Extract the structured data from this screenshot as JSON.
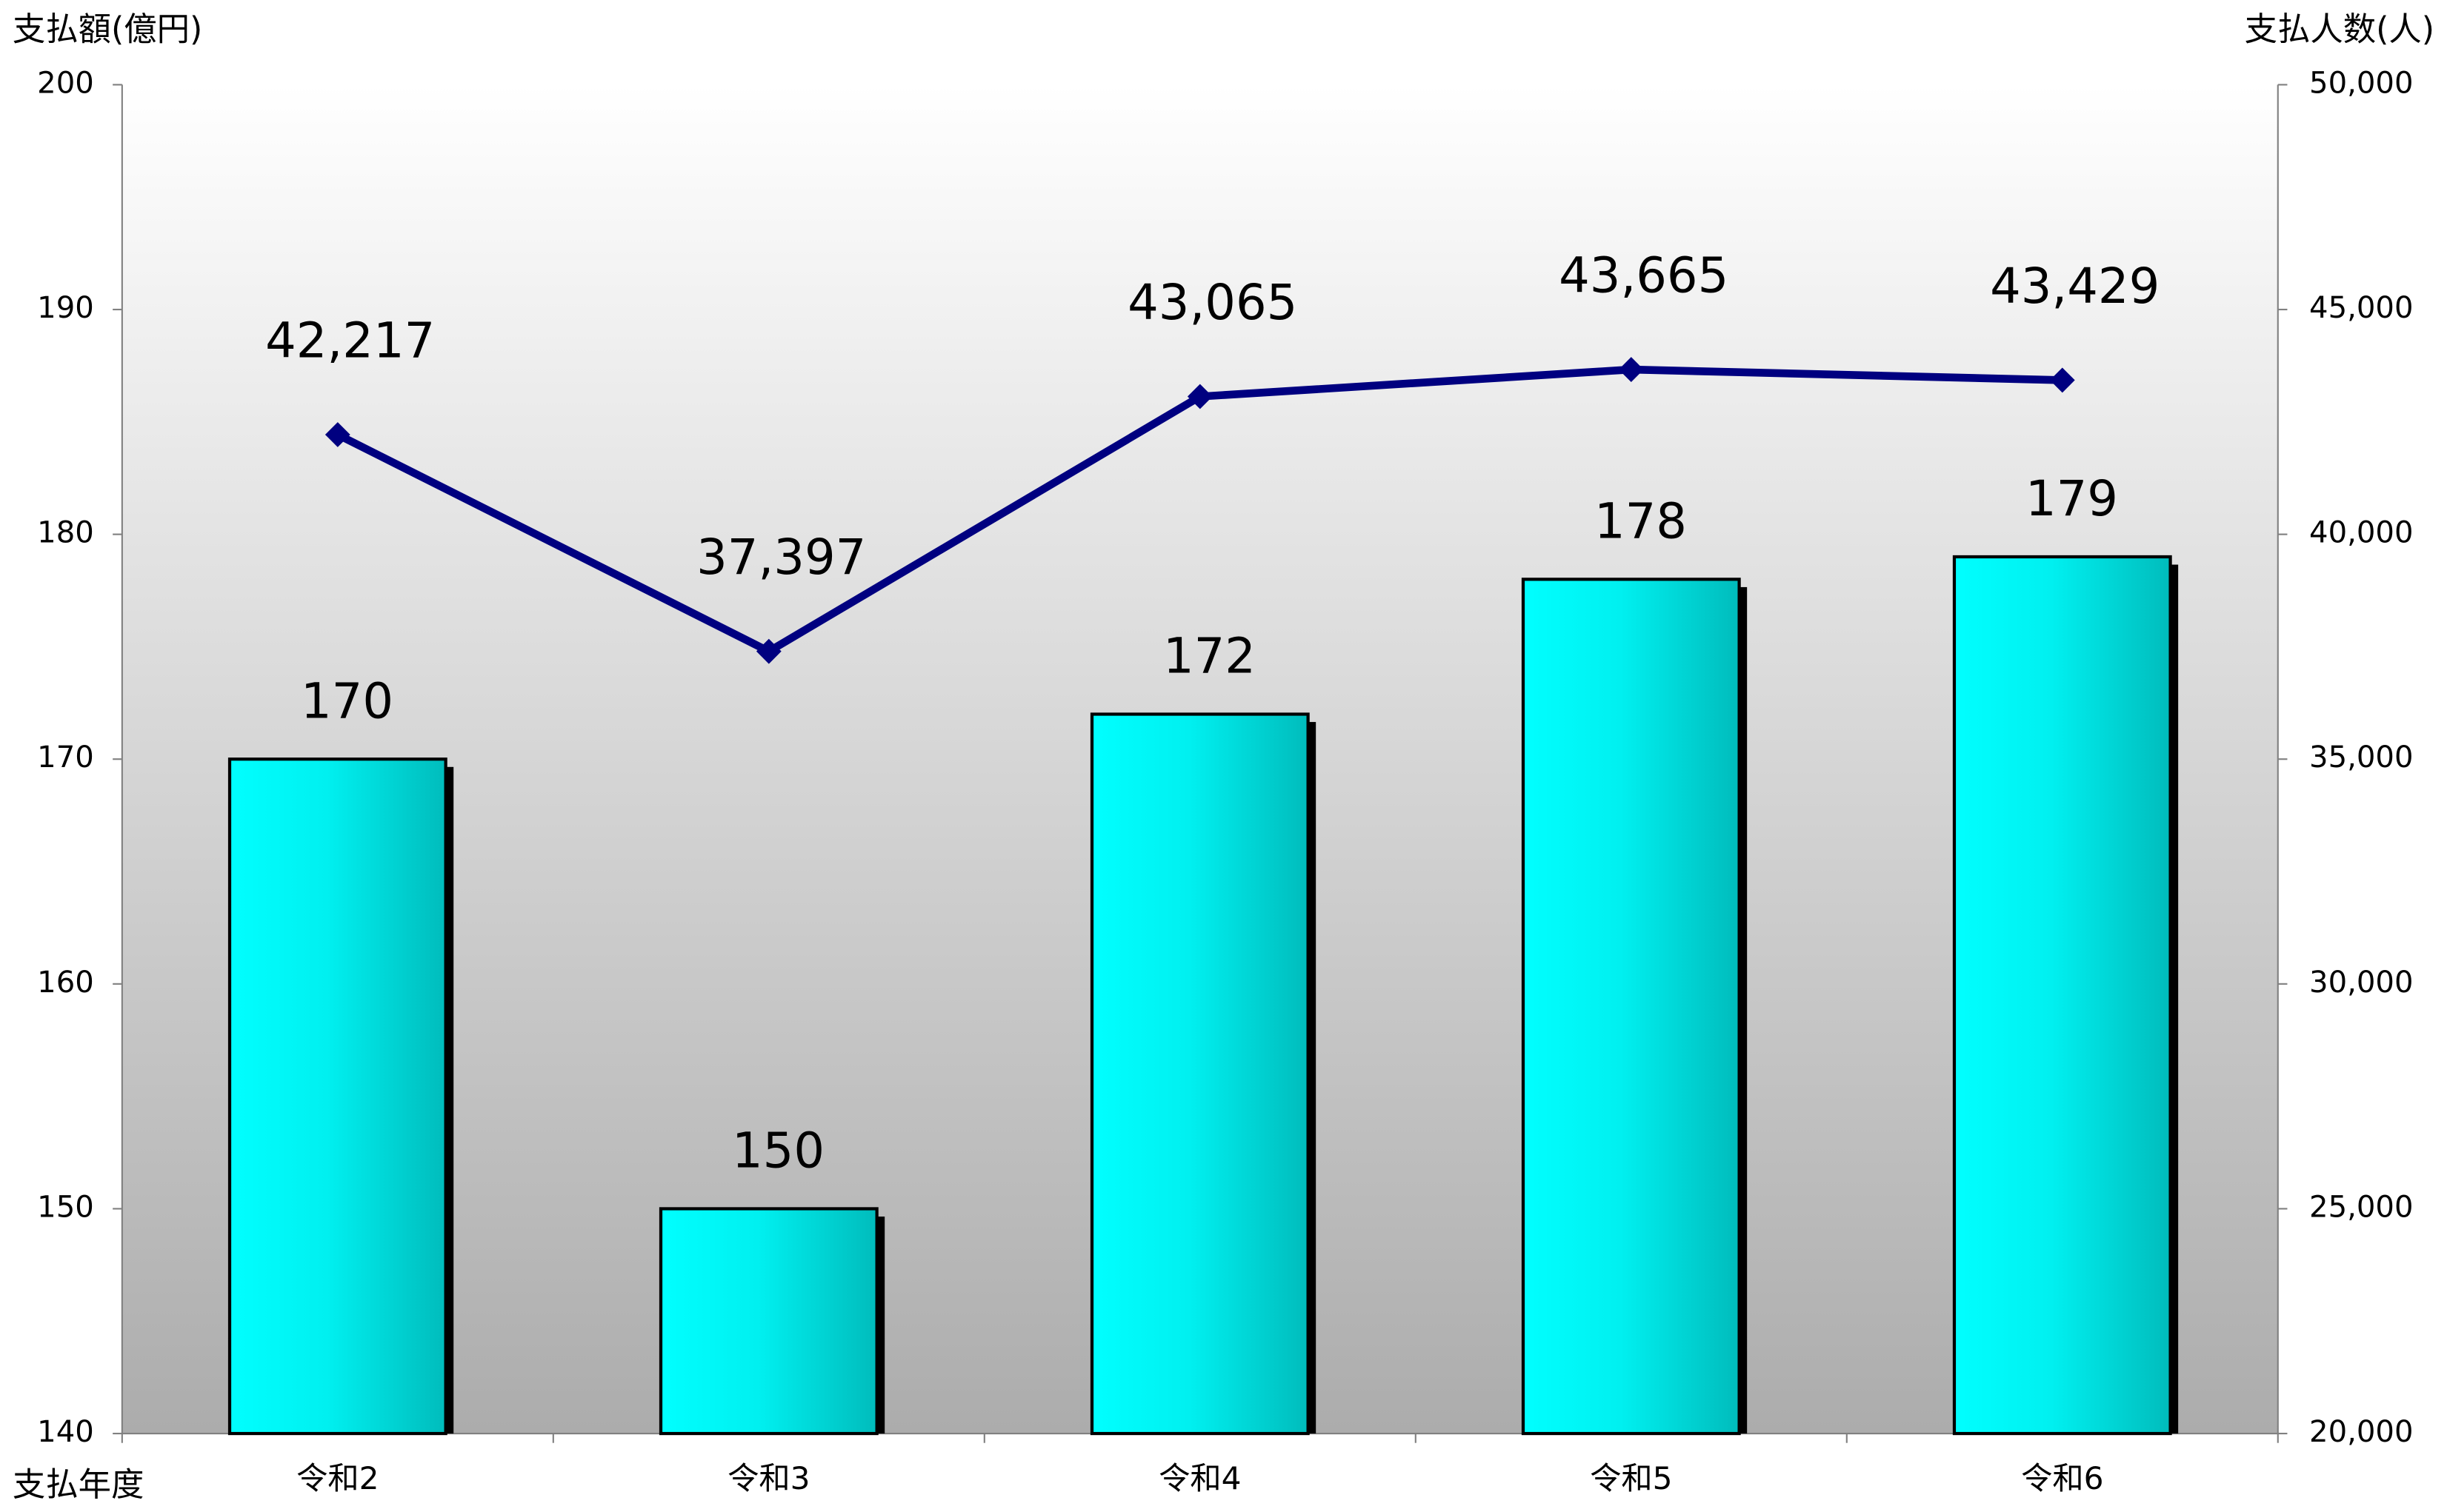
{
  "chart_data": {
    "type": "bar",
    "y_label": "支払額(億円)",
    "y2_label": "支払人数(人)",
    "x_label": "支払年度",
    "categories": [
      "令和2",
      "令和3",
      "令和4",
      "令和5",
      "令和6"
    ],
    "series": [
      {
        "name": "支払額",
        "type": "bar",
        "color": "#00ffff",
        "values": [
          170,
          150,
          172,
          178,
          179
        ]
      },
      {
        "name": "支払人数",
        "type": "line",
        "axis": "y2",
        "color": "#000080",
        "values": [
          42217,
          37397,
          43065,
          43665,
          43429
        ],
        "value_labels": [
          "42,217",
          "37,397",
          "43,065",
          "43,665",
          "43,429"
        ]
      }
    ],
    "ylim": [
      140,
      200
    ],
    "yticks": [
      140,
      150,
      160,
      170,
      180,
      190,
      200
    ],
    "y2lim": [
      20000,
      50000
    ],
    "y2ticks": [
      {
        "value": 20000,
        "label": "20,000"
      },
      {
        "value": 25000,
        "label": "25,000"
      },
      {
        "value": 30000,
        "label": "30,000"
      },
      {
        "value": 35000,
        "label": "35,000"
      },
      {
        "value": 40000,
        "label": "40,000"
      },
      {
        "value": 45000,
        "label": "45,000"
      },
      {
        "value": 50000,
        "label": "50,000"
      }
    ],
    "grid": false
  }
}
